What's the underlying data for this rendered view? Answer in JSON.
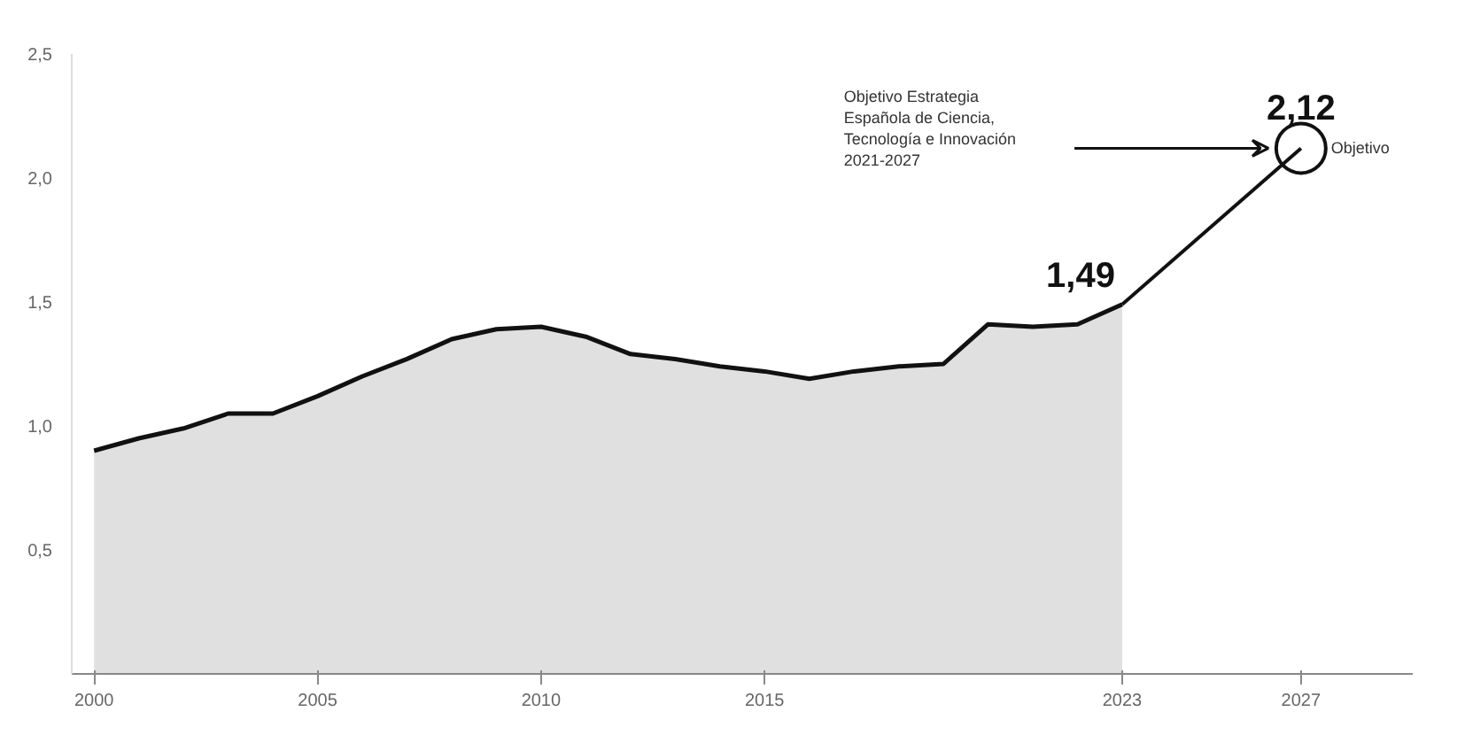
{
  "chart_data": {
    "type": "area",
    "x": [
      2000,
      2001,
      2002,
      2003,
      2004,
      2005,
      2006,
      2007,
      2008,
      2009,
      2010,
      2011,
      2012,
      2013,
      2014,
      2015,
      2016,
      2017,
      2018,
      2019,
      2020,
      2021,
      2022,
      2023
    ],
    "series": [
      {
        "color": "#e0e0e0",
        "values": [
          0.9,
          0.95,
          0.99,
          1.05,
          1.05,
          1.12,
          1.2,
          1.27,
          1.35,
          1.39,
          1.4,
          1.36,
          1.29,
          1.27,
          1.24,
          1.22,
          1.19,
          1.22,
          1.24,
          1.25,
          1.41,
          1.4,
          1.41,
          1.49
        ],
        "value_labels": [
          null,
          null,
          null,
          null,
          null,
          null,
          null,
          null,
          null,
          null,
          null,
          null,
          null,
          null,
          null,
          null,
          null,
          null,
          null,
          null,
          null,
          null,
          null,
          "1,49"
        ]
      },
      {
        "type": "line",
        "color": "#111111",
        "x": [
          2023,
          2027
        ],
        "values": [
          1.49,
          2.12
        ],
        "value_labels": [
          null,
          "2,12"
        ]
      }
    ],
    "annotations": [
      {
        "text": "Objetivo",
        "x": 2027,
        "y": 2.12
      },
      "Objetivo Estrategia\nEspañola de Ciencia,\nTecnología e Innovación\n2021-2027"
    ],
    "xlim": [
      1999.5,
      2029.5
    ],
    "ylim": [
      0,
      2.5
    ],
    "xticks": [
      2000,
      2005,
      2010,
      2015,
      2023,
      2027
    ],
    "yticks": [
      {
        "value": 0.5,
        "label": "0,5"
      },
      {
        "value": 1.0,
        "label": "1,0"
      },
      {
        "value": 1.5,
        "label": "1,5"
      },
      {
        "value": 2.0,
        "label": "2,0"
      },
      {
        "value": 2.5,
        "label": "2,5"
      }
    ],
    "grid": false,
    "line_style": "solid"
  }
}
